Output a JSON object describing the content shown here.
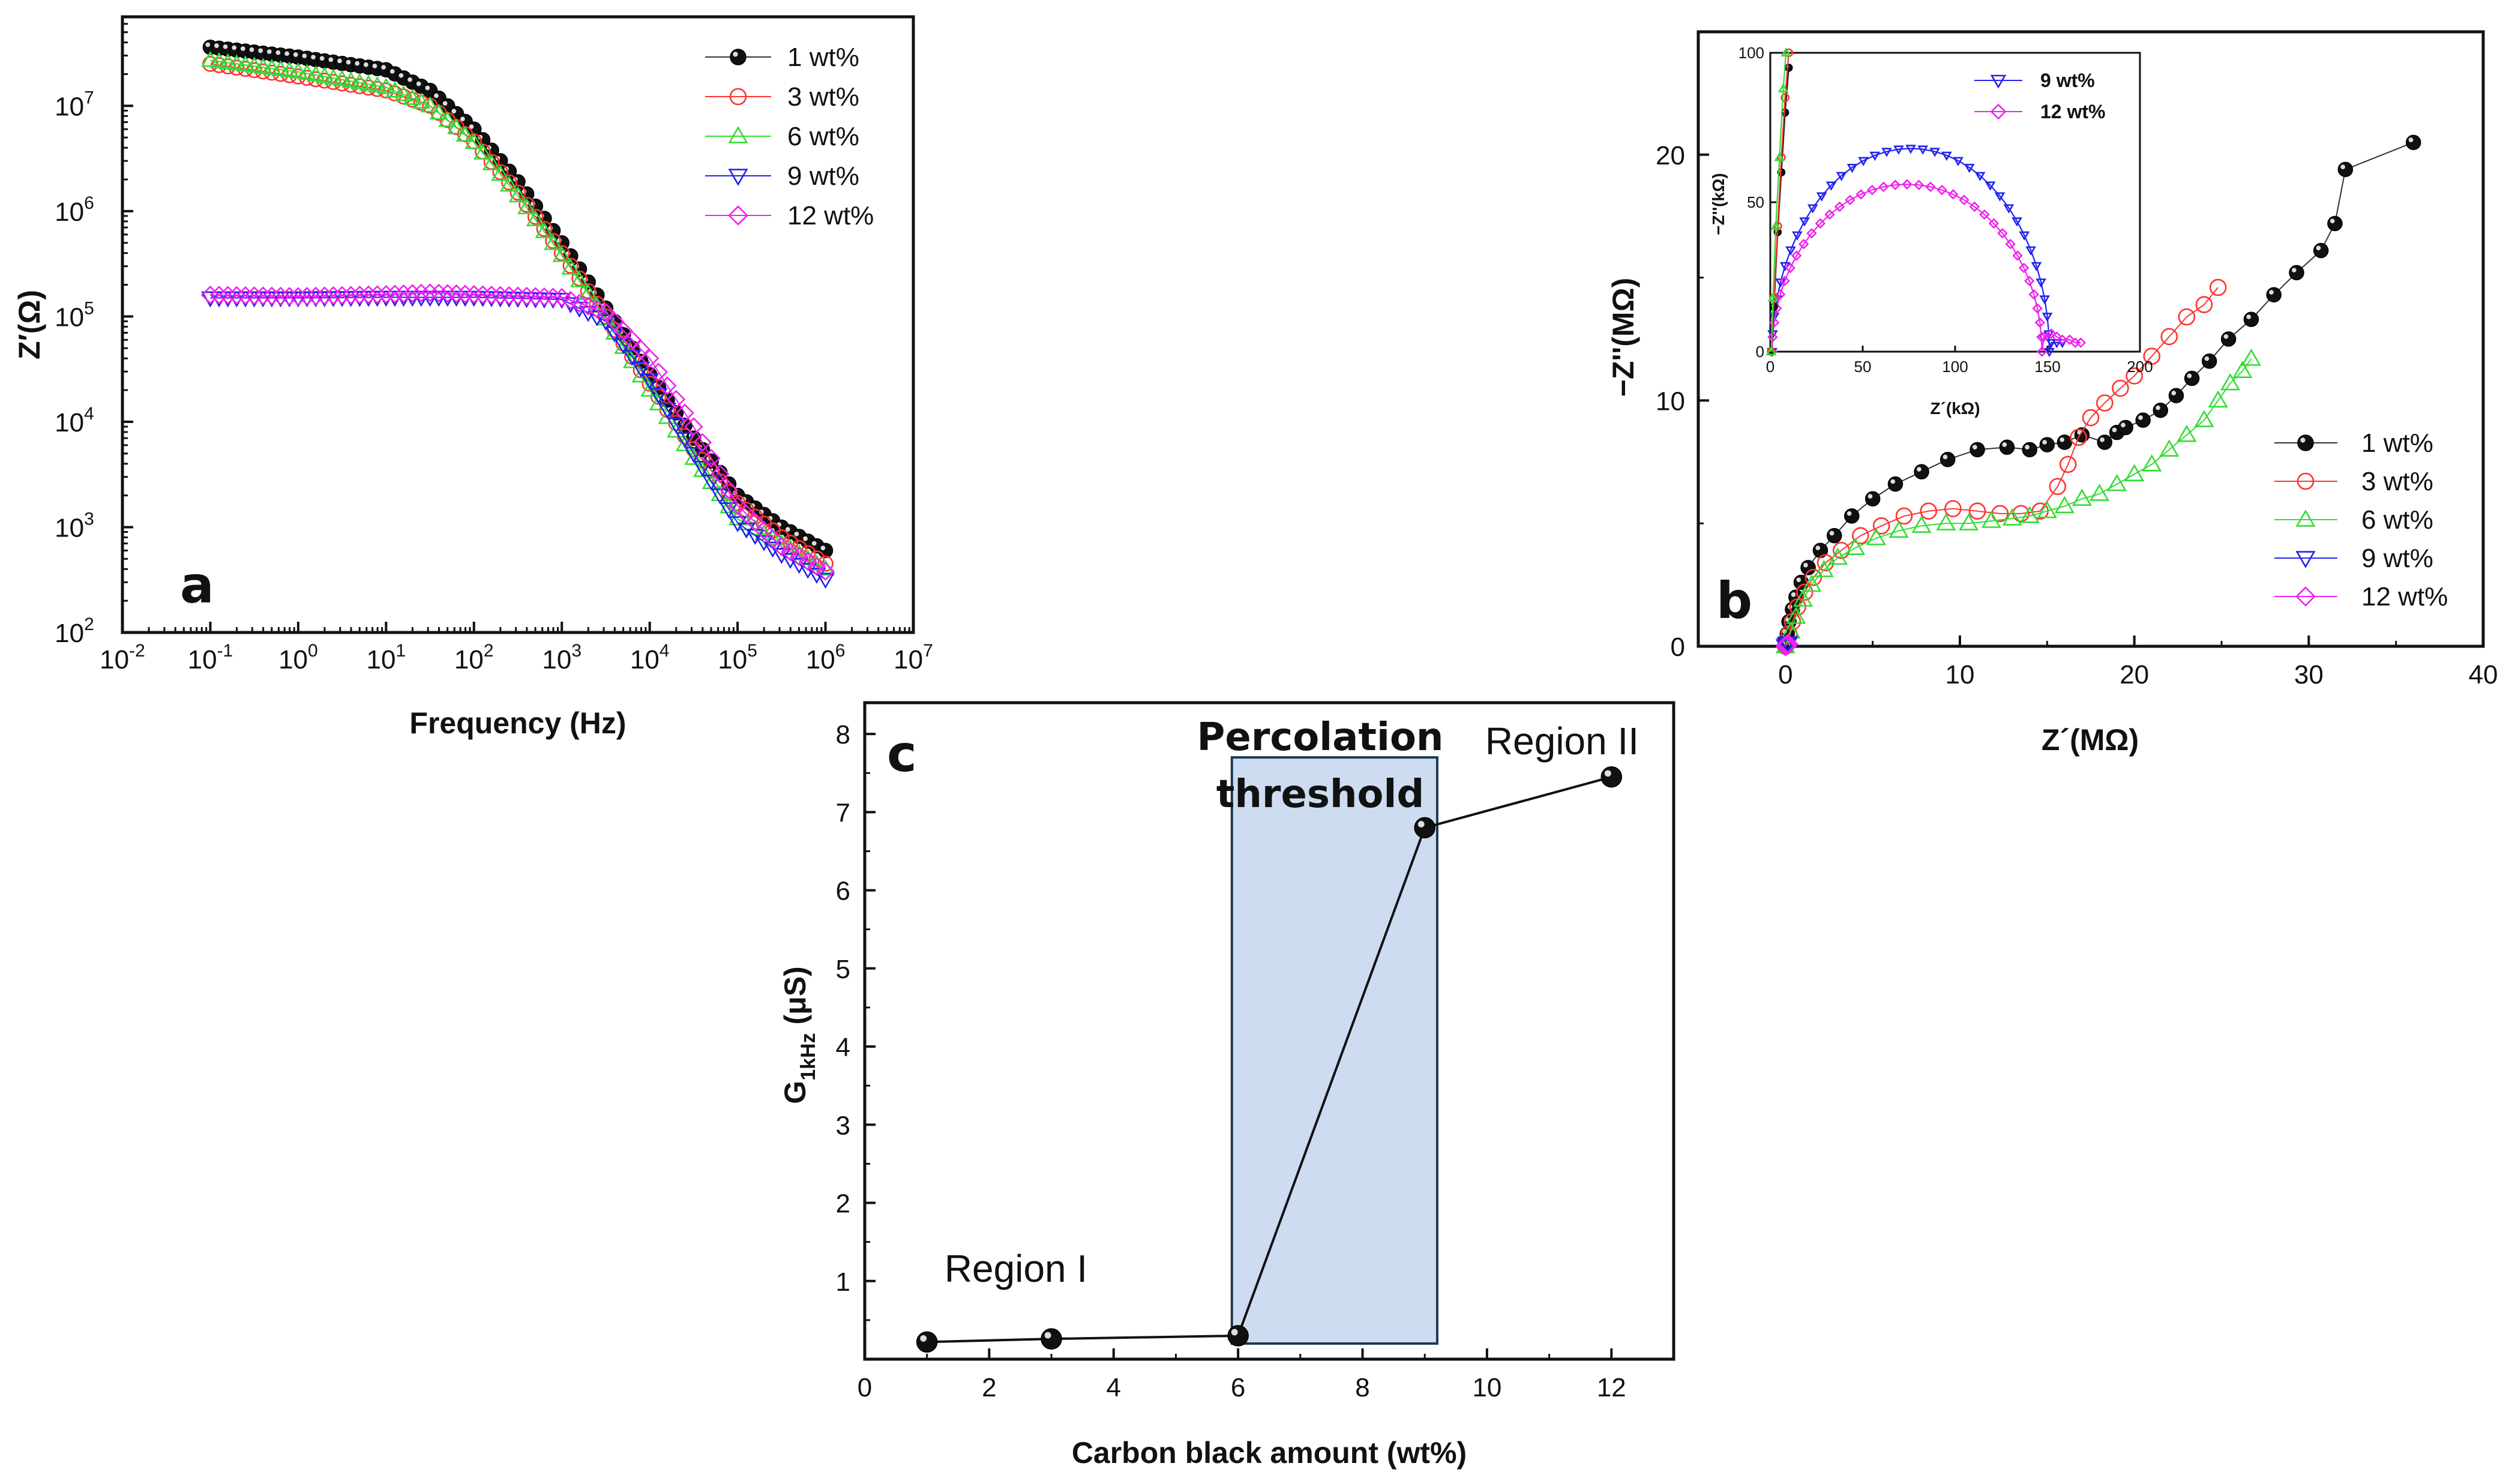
{
  "colors": {
    "1 wt%": "#111111",
    "3 wt%": "#ff3333",
    "6 wt%": "#33dd33",
    "9 wt%": "#2222ee",
    "12 wt%": "#ee22ee",
    "threshold_fill": "#cddcf0"
  },
  "chart_data": [
    {
      "panel": "a",
      "type": "scatter",
      "xlabel": "Frequency (Hz)",
      "ylabel": "Z′(Ω)",
      "xscale": "log",
      "yscale": "log",
      "xlim": [
        0.01,
        10000000
      ],
      "ylim": [
        100,
        70000000
      ],
      "xtick_labels": [
        "10-2",
        "10-1",
        "100",
        "101",
        "102",
        "103",
        "104",
        "105",
        "106",
        "107"
      ],
      "ytick_labels": [
        "102",
        "103",
        "104",
        "105",
        "106",
        "107"
      ],
      "legend_position": "top-right",
      "frequency_range": [
        0.1,
        1000000
      ],
      "series": [
        {
          "name": "1 wt%",
          "marker": "filled-sphere",
          "control": [
            [
              -1,
              36000000
            ],
            [
              0,
              29000000
            ],
            [
              1,
              22000000
            ],
            [
              1.5,
              14000000
            ],
            [
              2,
              6000000
            ],
            [
              2.5,
              1900000
            ],
            [
              3,
              500000
            ],
            [
              3.5,
              120000
            ],
            [
              4,
              28000
            ],
            [
              4.5,
              7000
            ],
            [
              5,
              2000
            ],
            [
              5.5,
              1000
            ],
            [
              6,
              600
            ]
          ]
        },
        {
          "name": "3 wt%",
          "marker": "open-circle",
          "control": [
            [
              -1,
              25000000
            ],
            [
              0,
              19000000
            ],
            [
              1,
              14000000
            ],
            [
              1.5,
              10000000
            ],
            [
              2,
              4600000
            ],
            [
              2.5,
              1500000
            ],
            [
              3,
              400000
            ],
            [
              3.5,
              100000
            ],
            [
              4,
              23000
            ],
            [
              4.5,
              5500
            ],
            [
              5,
              1700
            ],
            [
              5.5,
              800
            ],
            [
              6,
              450
            ]
          ]
        },
        {
          "name": "6 wt%",
          "marker": "open-triangle-up",
          "control": [
            [
              -1,
              27000000
            ],
            [
              0,
              21000000
            ],
            [
              1,
              15000000
            ],
            [
              1.5,
              10000000
            ],
            [
              2,
              4500000
            ],
            [
              2.5,
              1400000
            ],
            [
              3,
              380000
            ],
            [
              3.5,
              95000
            ],
            [
              4,
              20000
            ],
            [
              4.5,
              4500
            ],
            [
              5,
              1200
            ],
            [
              5.5,
              700
            ],
            [
              6,
              400
            ]
          ]
        },
        {
          "name": "9 wt%",
          "marker": "open-triangle-down",
          "control": [
            [
              -1,
              150000
            ],
            [
              0,
              150000
            ],
            [
              1,
              152000
            ],
            [
              2,
              152000
            ],
            [
              3,
              145000
            ],
            [
              3.5,
              90000
            ],
            [
              4,
              25000
            ],
            [
              4.5,
              5000
            ],
            [
              5,
              1100
            ],
            [
              5.5,
              550
            ],
            [
              6,
              320
            ]
          ]
        },
        {
          "name": "12 wt%",
          "marker": "open-diamond",
          "control": [
            [
              -1,
              160000
            ],
            [
              0,
              155000
            ],
            [
              1,
              162000
            ],
            [
              1.5,
              168000
            ],
            [
              2,
              162000
            ],
            [
              3,
              152000
            ],
            [
              3.5,
              110000
            ],
            [
              4,
              40000
            ],
            [
              4.5,
              9000
            ],
            [
              5,
              1600
            ],
            [
              5.5,
              650
            ],
            [
              6,
              380
            ]
          ]
        }
      ]
    },
    {
      "panel": "b",
      "type": "scatter",
      "xlabel": "Z´(MΩ)",
      "ylabel": "−Z''(MΩ)",
      "xlim": [
        -5,
        40
      ],
      "ylim": [
        0,
        25
      ],
      "xticks": [
        0,
        10,
        20,
        30,
        40
      ],
      "yticks": [
        0,
        10,
        20
      ],
      "legend_position": "bottom-right",
      "series": [
        {
          "name": "1 wt%",
          "marker": "filled-sphere",
          "points": [
            [
              0,
              0
            ],
            [
              0.1,
              0.5
            ],
            [
              0.2,
              1
            ],
            [
              0.4,
              1.5
            ],
            [
              0.6,
              2
            ],
            [
              0.9,
              2.6
            ],
            [
              1.3,
              3.2
            ],
            [
              2,
              3.9
            ],
            [
              2.8,
              4.5
            ],
            [
              3.8,
              5.3
            ],
            [
              5,
              6
            ],
            [
              6.3,
              6.6
            ],
            [
              7.8,
              7.1
            ],
            [
              9.3,
              7.6
            ],
            [
              11,
              8
            ],
            [
              12.7,
              8.1
            ],
            [
              14,
              8
            ],
            [
              15,
              8.2
            ],
            [
              16,
              8.3
            ],
            [
              17,
              8.6
            ],
            [
              18.3,
              8.3
            ],
            [
              19,
              8.7
            ],
            [
              19.5,
              8.9
            ],
            [
              20.5,
              9.2
            ],
            [
              21.5,
              9.6
            ],
            [
              22.4,
              10.2
            ],
            [
              23.3,
              10.9
            ],
            [
              24.3,
              11.6
            ],
            [
              25.4,
              12.5
            ],
            [
              26.7,
              13.3
            ],
            [
              28,
              14.3
            ],
            [
              29.3,
              15.2
            ],
            [
              30.7,
              16.1
            ],
            [
              31.5,
              17.2
            ],
            [
              32.1,
              19.4
            ],
            [
              36,
              20.5
            ]
          ]
        },
        {
          "name": "3 wt%",
          "marker": "open-circle",
          "points": [
            [
              0,
              0
            ],
            [
              0.2,
              0.5
            ],
            [
              0.4,
              1
            ],
            [
              0.7,
              1.6
            ],
            [
              1.1,
              2.2
            ],
            [
              1.6,
              2.8
            ],
            [
              2.3,
              3.4
            ],
            [
              3.2,
              3.9
            ],
            [
              4.3,
              4.5
            ],
            [
              5.5,
              4.9
            ],
            [
              6.8,
              5.3
            ],
            [
              8.2,
              5.5
            ],
            [
              9.6,
              5.6
            ],
            [
              11,
              5.5
            ],
            [
              12.3,
              5.4
            ],
            [
              13.5,
              5.4
            ],
            [
              14.6,
              5.5
            ],
            [
              15.6,
              6.5
            ],
            [
              16.2,
              7.4
            ],
            [
              16.8,
              8.5
            ],
            [
              17.5,
              9.3
            ],
            [
              18.3,
              9.9
            ],
            [
              19.2,
              10.5
            ],
            [
              20,
              11
            ],
            [
              21,
              11.8
            ],
            [
              22,
              12.6
            ],
            [
              23,
              13.4
            ],
            [
              24,
              13.9
            ],
            [
              24.8,
              14.6
            ]
          ]
        },
        {
          "name": "6 wt%",
          "marker": "open-triangle-up",
          "points": [
            [
              0,
              0
            ],
            [
              0.3,
              0.6
            ],
            [
              0.6,
              1.2
            ],
            [
              1,
              1.9
            ],
            [
              1.5,
              2.5
            ],
            [
              2.2,
              3.1
            ],
            [
              3,
              3.6
            ],
            [
              4,
              4
            ],
            [
              5.2,
              4.4
            ],
            [
              6.5,
              4.7
            ],
            [
              7.8,
              4.9
            ],
            [
              9.2,
              5
            ],
            [
              10.5,
              5
            ],
            [
              11.8,
              5.1
            ],
            [
              13,
              5.2
            ],
            [
              14,
              5.3
            ],
            [
              15,
              5.5
            ],
            [
              16,
              5.7
            ],
            [
              17,
              6
            ],
            [
              18,
              6.2
            ],
            [
              19,
              6.6
            ],
            [
              20,
              7
            ],
            [
              21,
              7.4
            ],
            [
              22,
              8
            ],
            [
              23,
              8.6
            ],
            [
              24,
              9.2
            ],
            [
              24.8,
              10
            ],
            [
              25.5,
              10.7
            ],
            [
              26.2,
              11.2
            ],
            [
              26.7,
              11.7
            ]
          ]
        },
        {
          "name": "9 wt%",
          "marker": "open-triangle-down",
          "points": [
            [
              0,
              0
            ],
            [
              0.05,
              0.07
            ],
            [
              0.1,
              0.1
            ],
            [
              0.14,
              0.12
            ],
            [
              0.15,
              0.1
            ]
          ]
        },
        {
          "name": "12 wt%",
          "marker": "open-diamond",
          "points": [
            [
              0,
              0
            ],
            [
              0.05,
              0.06
            ],
            [
              0.1,
              0.09
            ],
            [
              0.15,
              0.1
            ],
            [
              0.17,
              0.08
            ]
          ]
        }
      ],
      "inset": {
        "xlabel": "Z´(kΩ)",
        "ylabel": "−Z''(kΩ)",
        "xlim": [
          0,
          200
        ],
        "ylim": [
          0,
          100
        ],
        "xticks": [
          0,
          50,
          100,
          150,
          200
        ],
        "yticks": [
          0,
          50,
          100
        ],
        "legend": [
          "9 wt%",
          "12 wt%"
        ],
        "legend_position": "top",
        "series": [
          {
            "name": "9 wt%",
            "semicircle": {
              "start": 1,
              "end": 151,
              "peak": 68
            },
            "tail": [
              [
                152,
                3
              ],
              [
                155,
                3
              ],
              [
                158,
                3
              ]
            ]
          },
          {
            "name": "12 wt%",
            "semicircle": {
              "start": 1,
              "end": 147,
              "peak": 56
            },
            "tail": [
              [
                148,
                5
              ],
              [
                152,
                6
              ],
              [
                155,
                5
              ],
              [
                158,
                4
              ],
              [
                162,
                4
              ],
              [
                165,
                3
              ],
              [
                168,
                3
              ]
            ]
          },
          {
            "name": "1 wt%",
            "points": [
              [
                0.5,
                0
              ],
              [
                2,
                15
              ],
              [
                4,
                40
              ],
              [
                6,
                60
              ],
              [
                8,
                80
              ],
              [
                10,
                95
              ]
            ]
          },
          {
            "name": "3 wt%",
            "points": [
              [
                0.5,
                0
              ],
              [
                2,
                18
              ],
              [
                4,
                42
              ],
              [
                6,
                65
              ],
              [
                8,
                85
              ],
              [
                10,
                100
              ]
            ]
          },
          {
            "name": "6 wt%",
            "points": [
              [
                0.5,
                0
              ],
              [
                1.5,
                18
              ],
              [
                3,
                42
              ],
              [
                5,
                65
              ],
              [
                7,
                88
              ],
              [
                8.5,
                100
              ]
            ]
          }
        ]
      }
    },
    {
      "panel": "c",
      "type": "line",
      "xlabel": "Carbon black amount (wt%)",
      "ylabel": "G 1kHz (μS)",
      "xlim": [
        0,
        13
      ],
      "ylim": [
        0,
        8.4
      ],
      "xticks": [
        0,
        2,
        4,
        6,
        8,
        10,
        12
      ],
      "yticks": [
        1,
        2,
        3,
        4,
        5,
        6,
        7,
        8
      ],
      "x": [
        1,
        3,
        6,
        9,
        12
      ],
      "y": [
        0.22,
        0.26,
        0.3,
        6.8,
        7.45
      ],
      "annotations": {
        "region_1": "Region I",
        "region_2": "Region II",
        "threshold_line1": "Percolation",
        "threshold_line2": "threshold"
      },
      "threshold_band": {
        "x": [
          5.9,
          9.2
        ],
        "y": [
          0.2,
          7.7
        ]
      }
    }
  ]
}
